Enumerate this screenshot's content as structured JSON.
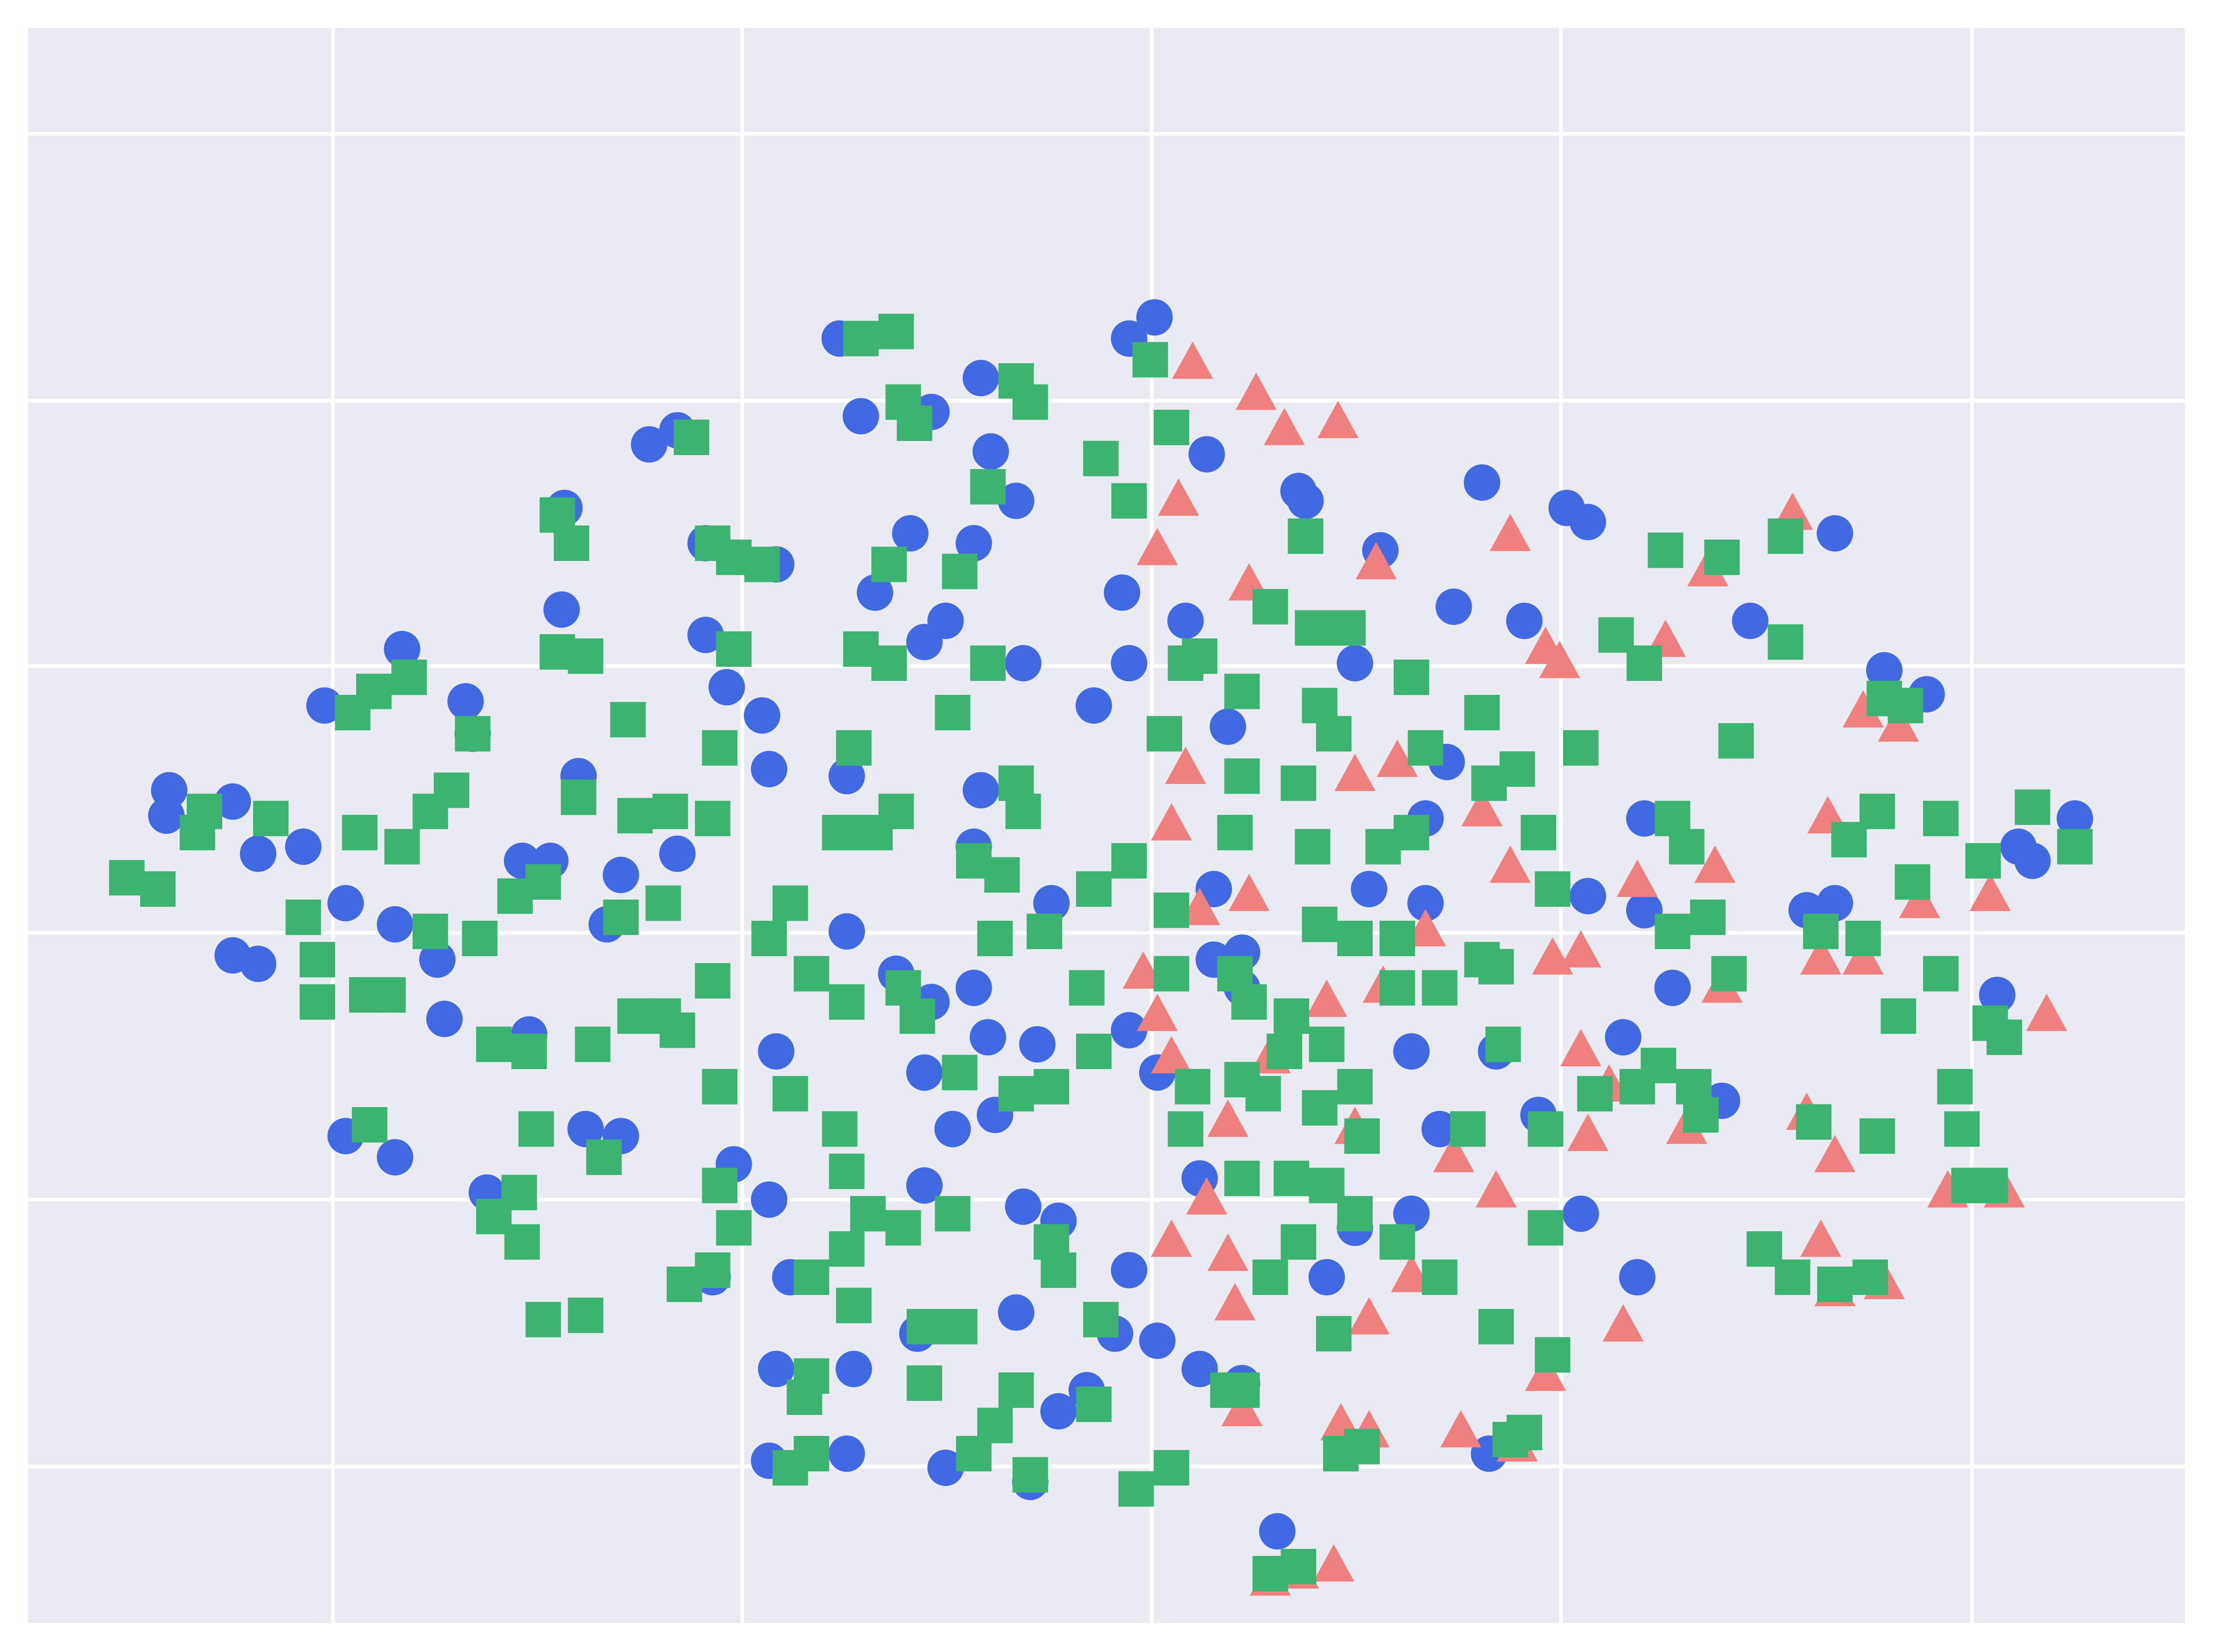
{
  "chart_data": {
    "type": "scatter",
    "xlim": [
      20,
      1548
    ],
    "ylim": [
      1150,
      20
    ],
    "xticks": [
      236,
      526,
      816,
      1106,
      1397
    ],
    "yticks": [
      95,
      284,
      472,
      661,
      850,
      1039
    ],
    "grid": true,
    "background": "#eaeaf2",
    "grid_color": "#ffffff",
    "series": [
      {
        "marker": "circle",
        "color": "#4169e1",
        "x": [
          120,
          118,
          165,
          183,
          215,
          165,
          183,
          230,
          285,
          330,
          335,
          280,
          245,
          315,
          310,
          245,
          280,
          345,
          375,
          430,
          415,
          440,
          370,
          390,
          410,
          398,
          400,
          460,
          480,
          500,
          550,
          500,
          515,
          540,
          545,
          600,
          595,
          610,
          660,
          695,
          702,
          720,
          690,
          645,
          620,
          670,
          655,
          725,
          775,
          800,
          795,
          840,
          818,
          800,
          855,
          920,
          925,
          978,
          1050,
          1110,
          1125,
          1030,
          1080,
          1240,
          1300,
          1335,
          1365,
          1470,
          1430,
          1440,
          1415,
          1300,
          1280,
          1165,
          1165,
          1125,
          1185,
          1150,
          1220,
          1090,
          1020,
          1000,
          1060,
          1120,
          1160,
          1055,
          1000,
          960,
          940,
          905,
          880,
          850,
          820,
          790,
          770,
          750,
          730,
          670,
          600,
          545,
          550,
          605,
          650,
          720,
          725,
          750,
          800,
          850,
          880,
          860,
          820,
          800,
          735,
          700,
          690,
          660,
          635,
          655,
          675,
          705,
          690,
          745,
          695,
          480,
          440,
          600,
          550,
          520,
          545,
          505,
          560,
          655,
          1010,
          970,
          1025,
          1010,
          960,
          870,
          860,
          880
        ],
        "values": [
          560,
          578,
          568,
          605,
          600,
          677,
          683,
          500,
          460,
          497,
          520,
          655,
          640,
          722,
          680,
          805,
          820,
          845,
          733,
          655,
          800,
          805,
          610,
          610,
          550,
          432,
          360,
          315,
          305,
          385,
          400,
          450,
          487,
          507,
          545,
          550,
          240,
          295,
          292,
          268,
          320,
          355,
          385,
          378,
          420,
          440,
          455,
          470,
          500,
          470,
          420,
          440,
          225,
          240,
          322,
          348,
          355,
          390,
          342,
          360,
          370,
          430,
          440,
          440,
          378,
          475,
          492,
          580,
          600,
          610,
          705,
          640,
          645,
          580,
          645,
          635,
          700,
          735,
          780,
          790,
          800,
          745,
          745,
          860,
          905,
          1030,
          860,
          870,
          905,
          1085,
          980,
          970,
          950,
          945,
          985,
          1000,
          1050,
          1040,
          1030,
          1035,
          970,
          970,
          945,
          930,
          855,
          865,
          900,
          835,
          700,
          680,
          760,
          730,
          740,
          735,
          700,
          710,
          690,
          760,
          800,
          790,
          600,
          640,
          560,
          605,
          620,
          660,
          745,
          825,
          850,
          905,
          905,
          840,
          640,
          630,
          540,
          580,
          470,
          515,
          630,
          675
        ]
      },
      {
        "marker": "triangle",
        "color": "#f08080",
        "x": [
          890,
          910,
          948,
          845,
          835,
          820,
          975,
          885,
          1070,
          1095,
          1105,
          1180,
          1210,
          1270,
          1320,
          1345,
          1295,
          1360,
          1410,
          1450,
          1420,
          1380,
          1300,
          1280,
          1290,
          1320,
          1215,
          1160,
          1120,
          1100,
          1070,
          1050,
          990,
          960,
          840,
          830,
          885,
          850,
          810,
          820,
          830,
          870,
          855,
          870,
          875,
          830,
          960,
          970,
          1000,
          1060,
          1030,
          1140,
          1125,
          1120,
          1220,
          1195,
          1150,
          1035,
          1075,
          1095,
          950,
          970,
          880,
          920,
          945,
          900,
          1290,
          1300,
          1335,
          940,
          900,
          980,
          1010
        ],
        "values": [
          280,
          305,
          300,
          258,
          355,
          390,
          400,
          415,
          380,
          460,
          470,
          455,
          405,
          365,
          505,
          515,
          580,
          640,
          635,
          720,
          845,
          845,
          820,
          790,
          680,
          680,
          615,
          625,
          675,
          680,
          615,
          575,
          540,
          550,
          545,
          585,
          635,
          645,
          690,
          720,
          750,
          795,
          850,
          890,
          925,
          880,
          800,
          935,
          905,
          845,
          820,
          770,
          805,
          745,
          700,
          800,
          940,
          1015,
          1025,
          975,
          1010,
          1015,
          1000,
          1115,
          1110,
          1120,
          880,
          915,
          910,
          710,
          750,
          700,
          660
        ]
      },
      {
        "marker": "square",
        "color": "#3cb371",
        "x": [
          90,
          112,
          145,
          140,
          192,
          215,
          225,
          225,
          260,
          275,
          265,
          250,
          290,
          255,
          285,
          320,
          305,
          335,
          305,
          340,
          262,
          350,
          368,
          370,
          380,
          385,
          415,
          428,
          395,
          405,
          395,
          415,
          445,
          410,
          450,
          475,
          505,
          510,
          520,
          490,
          505,
          520,
          540,
          610,
          635,
          640,
          648,
          720,
          730,
          700,
          780,
          800,
          830,
          815,
          630,
          680,
          610,
          630,
          700,
          675,
          605,
          595,
          620,
          635,
          720,
          725,
          690,
          710,
          740,
          705,
          640,
          600,
          650,
          560,
          545,
          575,
          470,
          470,
          480,
          505,
          440,
          450,
          385,
          365,
          375,
          350,
          420,
          510,
          560,
          595,
          600,
          615,
          640,
          675,
          680,
          720,
          745,
          775,
          770,
          775,
          800,
          830,
          830,
          825,
          840,
          850,
          880,
          900,
          925,
          930,
          955,
          935,
          945,
          920,
          880,
          875,
          930,
          935,
          960,
          990,
          980,
          1000,
          1010,
          1000,
          1050,
          1075,
          1055,
          1020,
          990,
          1050,
          1065,
          1090,
          1100,
          1120,
          1145,
          1165,
          1180,
          1220,
          1265,
          1265,
          1335,
          1350,
          1230,
          1185,
          1195,
          1210,
          1185,
          1225,
          1290,
          1320,
          1310,
          1330,
          1375,
          1405,
          1355,
          1440,
          1470,
          1345,
          1375,
          1410,
          1420,
          1385,
          1390,
          1395,
          1410,
          1330,
          1285,
          1250,
          1270,
          1300,
          1325,
          1160,
          1130,
          1175,
          1200,
          1205,
          1095,
          1095,
          1100,
          1080,
          1070,
          1060,
          1040,
          1060,
          1020,
          990,
          960,
          940,
          920,
          900,
          915,
          880,
          945,
          950,
          965,
          920,
          900,
          880,
          870,
          830,
          805,
          775,
          780,
          750,
          745,
          720,
          705,
          690,
          730,
          655,
          680,
          655,
          575,
          570,
          560,
          575,
          505,
          485,
          520,
          510,
          575,
          600,
          605,
          840,
          845,
          880,
          910,
          940,
          935,
          895,
          885,
          875,
          915,
          960,
          965
        ],
        "values": [
          622,
          630,
          575,
          590,
          580,
          650,
          680,
          710,
          705,
          705,
          490,
          505,
          480,
          590,
          600,
          560,
          575,
          520,
          660,
          665,
          797,
          862,
          845,
          880,
          800,
          935,
          932,
          820,
          365,
          385,
          462,
          465,
          510,
          565,
          578,
          575,
          580,
          530,
          460,
          310,
          385,
          395,
          400,
          240,
          235,
          285,
          300,
          270,
          285,
          345,
          325,
          355,
          303,
          255,
          400,
          405,
          460,
          470,
          470,
          505,
          530,
          590,
          590,
          575,
          555,
          575,
          610,
          620,
          660,
          665,
          700,
          710,
          720,
          640,
          665,
          690,
          640,
          720,
          730,
          695,
          650,
          720,
          625,
          635,
          745,
          740,
          740,
          770,
          775,
          800,
          830,
          860,
          870,
          860,
          760,
          775,
          770,
          745,
          700,
          630,
          610,
          645,
          690,
          520,
          470,
          465,
          490,
          430,
          380,
          445,
          445,
          500,
          520,
          555,
          550,
          590,
          600,
          655,
          665,
          665,
          600,
          590,
          530,
          480,
          505,
          545,
          555,
          700,
          700,
          680,
          740,
          590,
          630,
          530,
          450,
          470,
          390,
          395,
          380,
          455,
          495,
          500,
          525,
          580,
          600,
          650,
          660,
          690,
          660,
          665,
          595,
          575,
          580,
          610,
          625,
          572,
          600,
          720,
          690,
          725,
          735,
          770,
          800,
          840,
          840,
          805,
          795,
          885,
          905,
          910,
          905,
          770,
          775,
          755,
          770,
          790,
          800,
          870,
          960,
          1015,
          1020,
          940,
          800,
          685,
          905,
          880,
          860,
          840,
          880,
          905,
          835,
          835,
          945,
          1030,
          1025,
          1110,
          1115,
          985,
          985,
          1040,
          1055,
          995,
          935,
          900,
          880,
          985,
          1010,
          1030,
          1045,
          940,
          940,
          980,
          975,
          990,
          1040,
          1030,
          900,
          910,
          870,
          840,
          905,
          885,
          925,
          800,
          770,
          765,
          745,
          740,
          785,
          775,
          710,
          690,
          720,
          770,
          805
        ]
      }
    ]
  }
}
